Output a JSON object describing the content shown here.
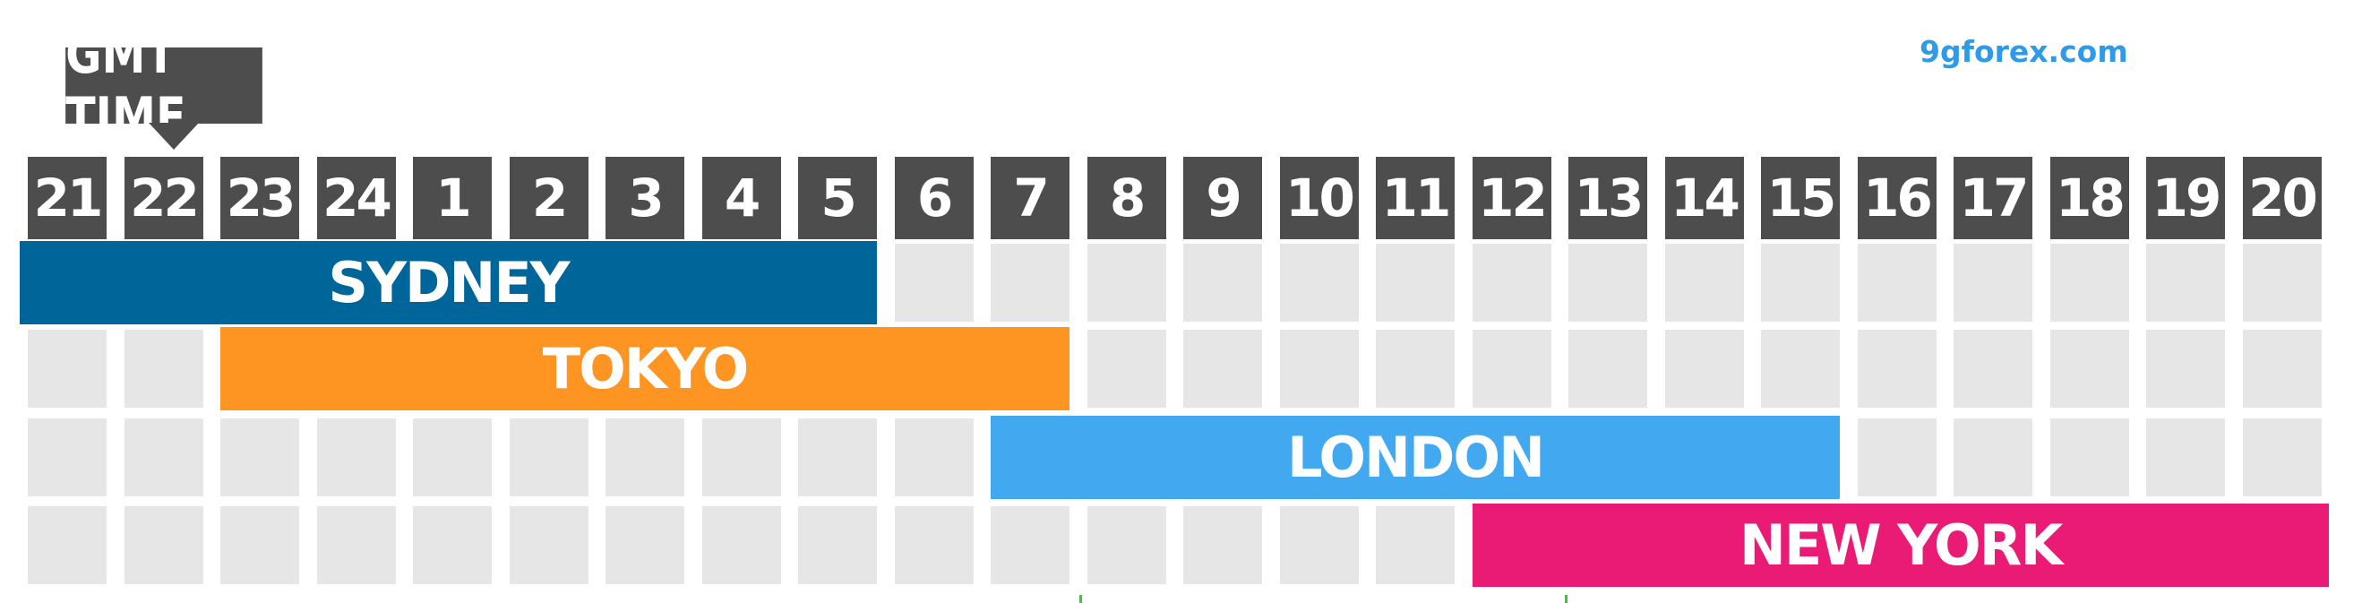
{
  "header": {
    "gmt_label": "GMT TIME",
    "watermark": "9gforex.com"
  },
  "hours": [
    "21",
    "22",
    "23",
    "24",
    "1",
    "2",
    "3",
    "4",
    "5",
    "6",
    "7",
    "8",
    "9",
    "10",
    "11",
    "12",
    "13",
    "14",
    "15",
    "16",
    "17",
    "18",
    "19",
    "20"
  ],
  "sessions": [
    {
      "name": "SYDNEY",
      "start_hour_index": 0,
      "end_hour_index": 8,
      "color": "#006599"
    },
    {
      "name": "TOKYO",
      "start_hour_index": 2,
      "end_hour_index": 10,
      "color": "#fe9421"
    },
    {
      "name": "LONDON",
      "start_hour_index": 10,
      "end_hour_index": 18,
      "color": "#42a8f0"
    },
    {
      "name": "NEW YORK",
      "start_hour_index": 15,
      "end_hour_index": 23,
      "color": "#ea1b75"
    }
  ],
  "colors": {
    "hour_cell_bg": "#4d4d4d",
    "grid_cell_bg": "#e6e6e6",
    "watermark": "#2f9be8"
  }
}
